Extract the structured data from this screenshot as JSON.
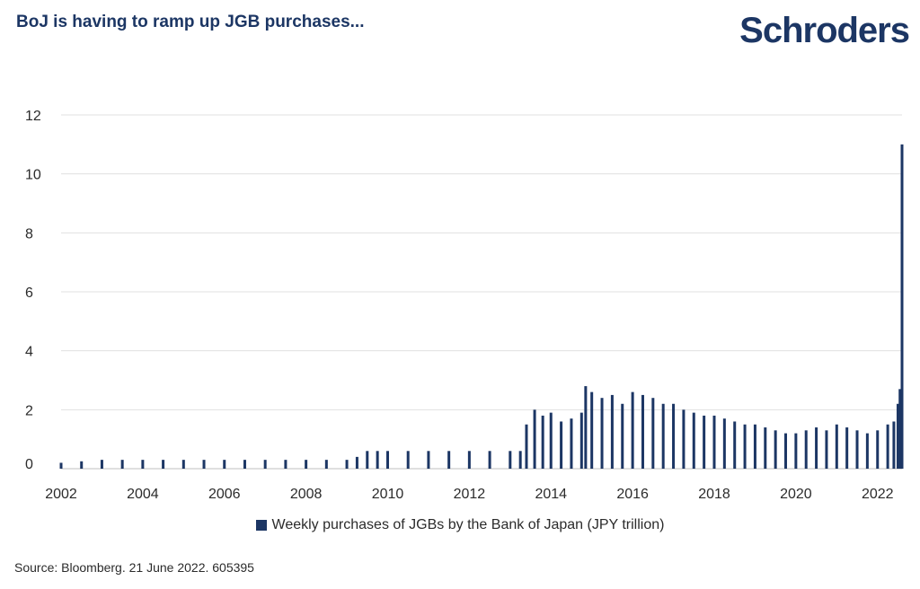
{
  "header": {
    "title": "BoJ is having to ramp up JGB purchases..."
  },
  "brand": {
    "logo_text": "Schroders"
  },
  "footer": {
    "source": "Source: Bloomberg. 21 June 2022. 605395"
  },
  "colors": {
    "bar": "#1c3664",
    "grid": "#e0e0e0",
    "text": "#2b2b2b",
    "title": "#1c3664"
  },
  "chart_data": {
    "type": "bar",
    "title": "BoJ is having to ramp up JGB purchases...",
    "xlabel": "",
    "ylabel": "",
    "xlim": [
      2002.0,
      2022.6
    ],
    "ylim": [
      0,
      12
    ],
    "y_ticks": [
      0,
      2,
      4,
      6,
      8,
      10,
      12
    ],
    "x_ticks": [
      "2002",
      "2004",
      "2006",
      "2008",
      "2010",
      "2012",
      "2014",
      "2016",
      "2018",
      "2020",
      "2022"
    ],
    "grid": true,
    "legend_position": "bottom-center",
    "series": [
      {
        "name": "Weekly purchases of JGBs by the Bank of Japan (JPY trillion)",
        "frequency": "weekly (approximate, read from chart)",
        "x": [
          2002.0,
          2002.5,
          2003.0,
          2003.5,
          2004.0,
          2004.5,
          2005.0,
          2005.5,
          2006.0,
          2006.5,
          2007.0,
          2007.5,
          2008.0,
          2008.5,
          2009.0,
          2009.25,
          2009.5,
          2009.75,
          2010.0,
          2010.5,
          2011.0,
          2011.5,
          2012.0,
          2012.5,
          2013.0,
          2013.25,
          2013.4,
          2013.6,
          2013.8,
          2014.0,
          2014.25,
          2014.5,
          2014.75,
          2014.85,
          2015.0,
          2015.25,
          2015.5,
          2015.75,
          2016.0,
          2016.25,
          2016.5,
          2016.75,
          2017.0,
          2017.25,
          2017.5,
          2017.75,
          2018.0,
          2018.25,
          2018.5,
          2018.75,
          2019.0,
          2019.25,
          2019.5,
          2019.75,
          2020.0,
          2020.25,
          2020.5,
          2020.75,
          2021.0,
          2021.25,
          2021.5,
          2021.75,
          2022.0,
          2022.25,
          2022.4,
          2022.5,
          2022.55,
          2022.6
        ],
        "values": [
          0.2,
          0.25,
          0.3,
          0.3,
          0.3,
          0.3,
          0.3,
          0.3,
          0.3,
          0.3,
          0.3,
          0.3,
          0.3,
          0.3,
          0.3,
          0.4,
          0.6,
          0.6,
          0.6,
          0.6,
          0.6,
          0.6,
          0.6,
          0.6,
          0.6,
          0.6,
          1.5,
          2.0,
          1.8,
          1.9,
          1.6,
          1.7,
          1.9,
          2.8,
          2.6,
          2.4,
          2.5,
          2.2,
          2.6,
          2.5,
          2.4,
          2.2,
          2.2,
          2.0,
          1.9,
          1.8,
          1.8,
          1.7,
          1.6,
          1.5,
          1.5,
          1.4,
          1.3,
          1.2,
          1.2,
          1.3,
          1.4,
          1.3,
          1.5,
          1.4,
          1.3,
          1.2,
          1.3,
          1.5,
          1.6,
          2.2,
          2.7,
          11.0
        ]
      }
    ]
  }
}
